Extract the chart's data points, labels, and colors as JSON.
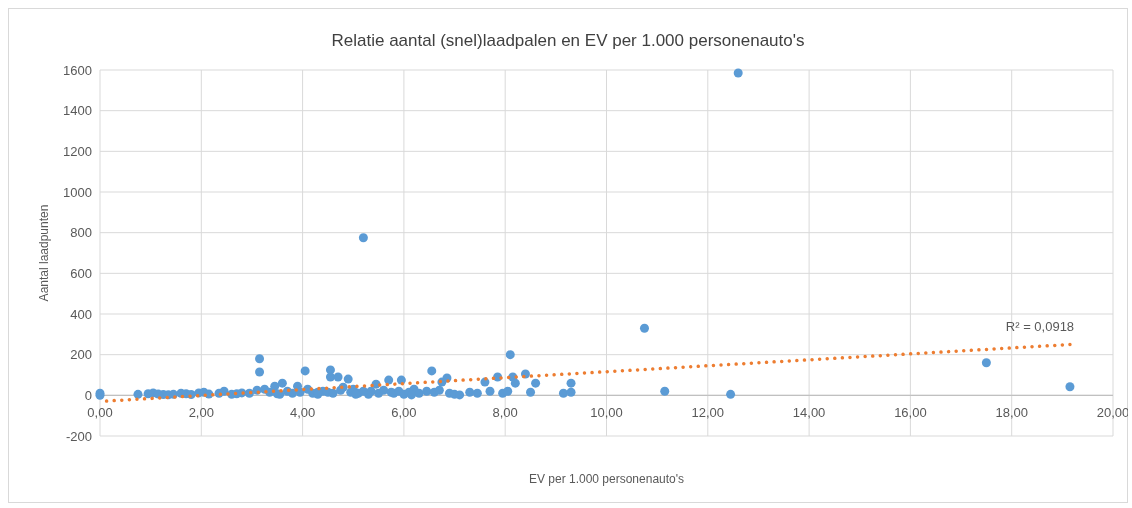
{
  "chart_data": {
    "type": "scatter",
    "title": "Relatie aantal (snel)laadpalen en EV per 1.000 personenauto's",
    "xlabel": "EV per 1.000 personenauto's",
    "ylabel": "Aantal laadpunten",
    "xlim": [
      0,
      20
    ],
    "ylim": [
      -200,
      1600
    ],
    "xticks": [
      {
        "value": 0,
        "label": "0,00"
      },
      {
        "value": 2,
        "label": "2,00"
      },
      {
        "value": 4,
        "label": "4,00"
      },
      {
        "value": 6,
        "label": "6,00"
      },
      {
        "value": 8,
        "label": "8,00"
      },
      {
        "value": 10,
        "label": "10,00"
      },
      {
        "value": 12,
        "label": "12,00"
      },
      {
        "value": 14,
        "label": "14,00"
      },
      {
        "value": 16,
        "label": "16,00"
      },
      {
        "value": 18,
        "label": "18,00"
      },
      {
        "value": 20,
        "label": "20,00"
      }
    ],
    "yticks": [
      -200,
      0,
      200,
      400,
      600,
      800,
      1000,
      1200,
      1400,
      1600
    ],
    "grid": true,
    "series": [
      {
        "color": "#5b9bd5",
        "marker": "circle",
        "x": [
          0,
          0,
          0.75,
          0.95,
          1.05,
          1.15,
          1.25,
          1.35,
          1.45,
          1.6,
          1.7,
          1.8,
          1.95,
          2.05,
          2.15,
          2.35,
          2.45,
          2.6,
          2.7,
          2.8,
          2.95,
          3.1,
          3.15,
          3.15,
          3.25,
          3.35,
          3.45,
          3.55,
          3.6,
          3.7,
          3.8,
          3.9,
          3.95,
          4.05,
          4.1,
          4.2,
          4.3,
          4.4,
          4.5,
          4.55,
          4.55,
          4.6,
          4.7,
          4.75,
          4.8,
          4.9,
          4.95,
          5.0,
          5.1,
          5.2,
          5.3,
          5.35,
          5.45,
          5.5,
          5.6,
          5.7,
          5.75,
          5.8,
          5.9,
          5.95,
          6.0,
          6.1,
          6.2,
          6.3,
          6.45,
          6.55,
          6.6,
          6.7,
          6.75,
          6.85,
          6.9,
          7.0,
          7.1,
          7.3,
          7.45,
          7.6,
          7.7,
          7.85,
          7.95,
          8.05,
          8.1,
          8.15,
          8.2,
          8.4,
          8.5,
          8.6,
          9.15,
          9.3,
          9.3,
          10.75,
          11.15,
          12.45,
          12.6,
          17.5,
          19.15,
          5.2,
          3.5,
          4.3,
          5.05,
          6.15
        ],
        "values": [
          10,
          0,
          5,
          8,
          12,
          6,
          4,
          3,
          5,
          10,
          8,
          4,
          12,
          15,
          6,
          10,
          20,
          5,
          8,
          12,
          10,
          25,
          180,
          115,
          30,
          15,
          45,
          5,
          60,
          20,
          10,
          45,
          15,
          120,
          30,
          10,
          5,
          20,
          15,
          125,
          90,
          10,
          90,
          25,
          40,
          80,
          15,
          30,
          10,
          775,
          5,
          20,
          55,
          10,
          25,
          75,
          15,
          10,
          20,
          75,
          5,
          15,
          30,
          10,
          20,
          120,
          15,
          25,
          65,
          85,
          10,
          5,
          2,
          15,
          10,
          65,
          20,
          90,
          10,
          20,
          200,
          90,
          60,
          105,
          15,
          60,
          10,
          15,
          60,
          330,
          20,
          5,
          1585,
          160,
          42,
          20,
          8,
          15,
          5,
          2
        ]
      },
      {
        "type": "line",
        "color": "#ed7d31",
        "marker": "none",
        "line_style": "dotted",
        "x": [
          0,
          19.15
        ],
        "values": [
          -30,
          250
        ]
      }
    ],
    "annotations": [
      "R² = 0,0918"
    ]
  }
}
